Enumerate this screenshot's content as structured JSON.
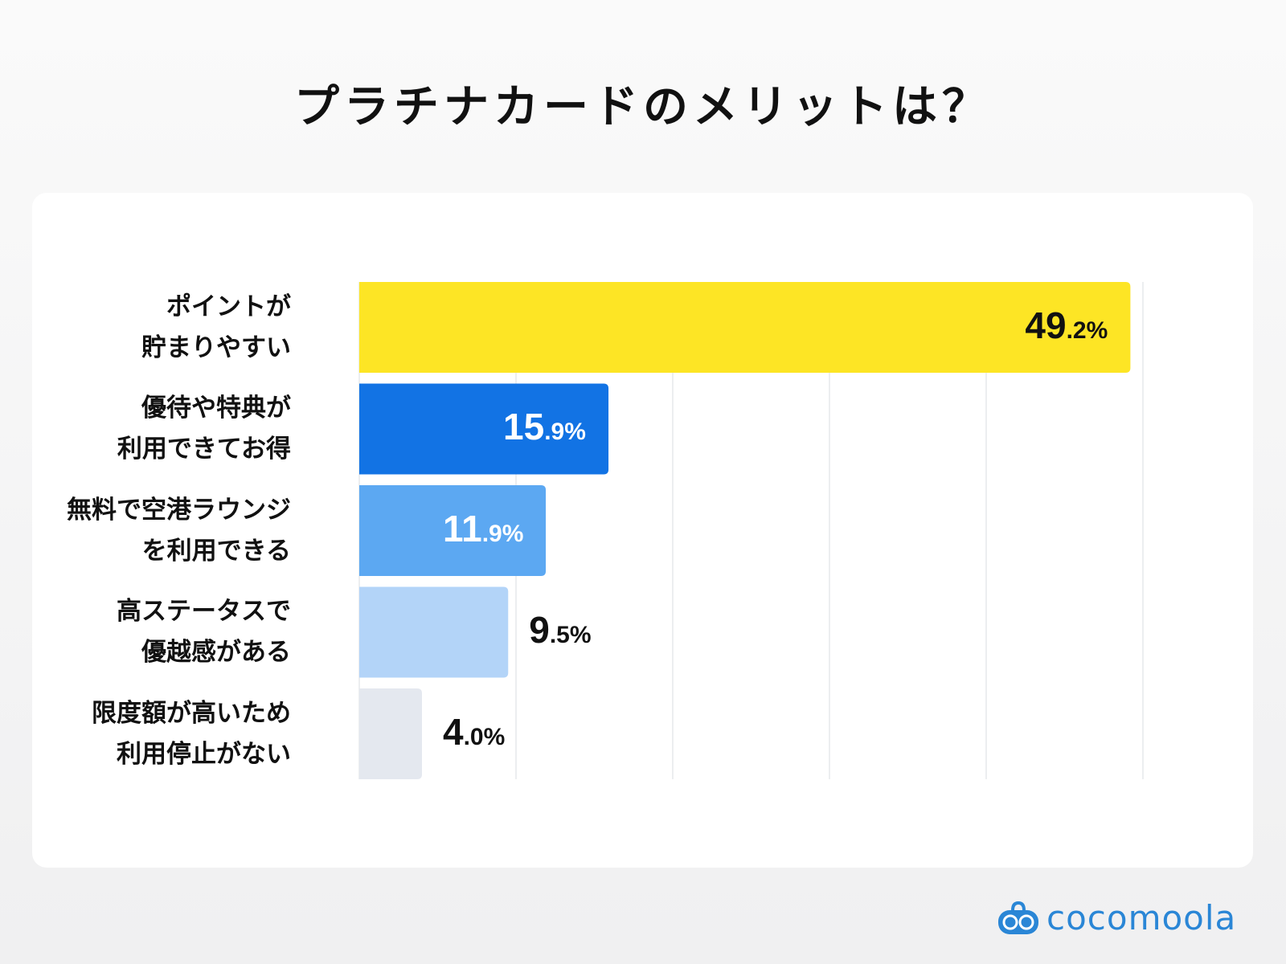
{
  "title": "プラチナカードのメリットは？",
  "brand": "cocomoola",
  "chart_data": {
    "type": "bar",
    "orientation": "horizontal",
    "title": "プラチナカードのメリットは？",
    "categories": [
      "ポイントが\n貯まりやすい",
      "優待や特典が\n利用できてお得",
      "無料で空港ラウンジ\nを利用できる",
      "高ステータスで\n優越感がある",
      "限度額が高いため\n利用停止がない"
    ],
    "values": [
      49.2,
      15.9,
      11.9,
      9.5,
      4.0
    ],
    "value_labels": [
      "49.2%",
      "15.9%",
      "11.9%",
      "9.5%",
      "4.0%"
    ],
    "colors": [
      "#fde525",
      "#1273e4",
      "#5ca8f2",
      "#b3d4f8",
      "#e4e8ef"
    ],
    "label_colors": [
      "#111111",
      "#ffffff",
      "#ffffff",
      "#111111",
      "#111111"
    ],
    "label_inside": [
      true,
      true,
      true,
      false,
      false
    ],
    "xlim": [
      0,
      50
    ],
    "grid": true,
    "grid_step": 10,
    "xlabel": "",
    "ylabel": ""
  }
}
